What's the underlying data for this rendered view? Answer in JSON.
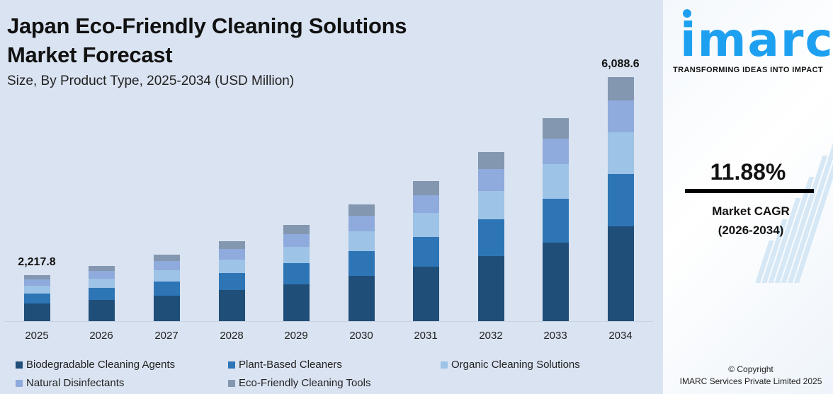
{
  "header": {
    "title_line1": "Japan Eco-Friendly Cleaning Solutions",
    "title_line2": "Market Forecast",
    "subtitle": "Size, By Product Type, 2025-2034 (USD Million)"
  },
  "brand": {
    "logo_text": "imarc",
    "tagline": "TRANSFORMING IDEAS INTO IMPACT",
    "color": "#1ea0f0"
  },
  "cagr": {
    "value": "11.88%",
    "label": "Market CAGR",
    "period": "(2026-2034)"
  },
  "copyright": {
    "line1": "© Copyright",
    "line2": "IMARC Services Private Limited 2025"
  },
  "chart_data": {
    "type": "bar",
    "stacked": true,
    "title": "Japan Eco-Friendly Cleaning Solutions Market Forecast",
    "subtitle": "Size, By Product Type, 2025-2034 (USD Million)",
    "xlabel": "",
    "ylabel": "USD Million",
    "categories": [
      "2025",
      "2026",
      "2027",
      "2028",
      "2029",
      "2030",
      "2031",
      "2032",
      "2033",
      "2034"
    ],
    "totals": [
      2217.8,
      2479,
      2773,
      3103,
      3471,
      3884,
      4345,
      4861,
      5439,
      6088.6
    ],
    "data_labels": {
      "2025": "2,217.8",
      "2034": "6,088.6"
    },
    "bar_pixel_heights": [
      65,
      78,
      94,
      113,
      136,
      165,
      198,
      239,
      287,
      345
    ],
    "series": [
      {
        "name": "Biodegradable Cleaning Agents",
        "color": "#1f4e79",
        "values": [
          853,
          955,
          1070,
          1198,
          1340,
          1501,
          1680,
          1881,
          2107,
          2364
        ]
      },
      {
        "name": "Plant-Based Cleaners",
        "color": "#2e75b6",
        "values": [
          477,
          532,
          595,
          666,
          744,
          832,
          931,
          1041,
          1165,
          1305
        ]
      },
      {
        "name": "Organic Cleaning Solutions",
        "color": "#9dc3e6",
        "values": [
          376,
          421,
          471,
          527,
          591,
          662,
          741,
          830,
          929,
          1041
        ]
      },
      {
        "name": "Natural Disinfectants",
        "color": "#8faadc",
        "values": [
          307,
          337,
          373,
          413,
          457,
          507,
          561,
          621,
          686,
          794
        ]
      },
      {
        "name": "Eco-Friendly Cleaning Tools",
        "color": "#8497b0",
        "values": [
          204.8,
          234,
          264,
          299,
          339,
          382,
          432,
          488,
          552,
          584.6
        ]
      }
    ],
    "grid": false,
    "legend_position": "bottom",
    "cagr": "11.88%",
    "cagr_period": "2026-2034"
  },
  "legend": [
    {
      "label": "Biodegradable Cleaning Agents",
      "color": "#1f4e79"
    },
    {
      "label": "Plant-Based Cleaners",
      "color": "#2e75b6"
    },
    {
      "label": "Organic Cleaning Solutions",
      "color": "#9dc3e6"
    },
    {
      "label": "Natural Disinfectants",
      "color": "#8faadc"
    },
    {
      "label": "Eco-Friendly Cleaning Tools",
      "color": "#8497b0"
    }
  ]
}
